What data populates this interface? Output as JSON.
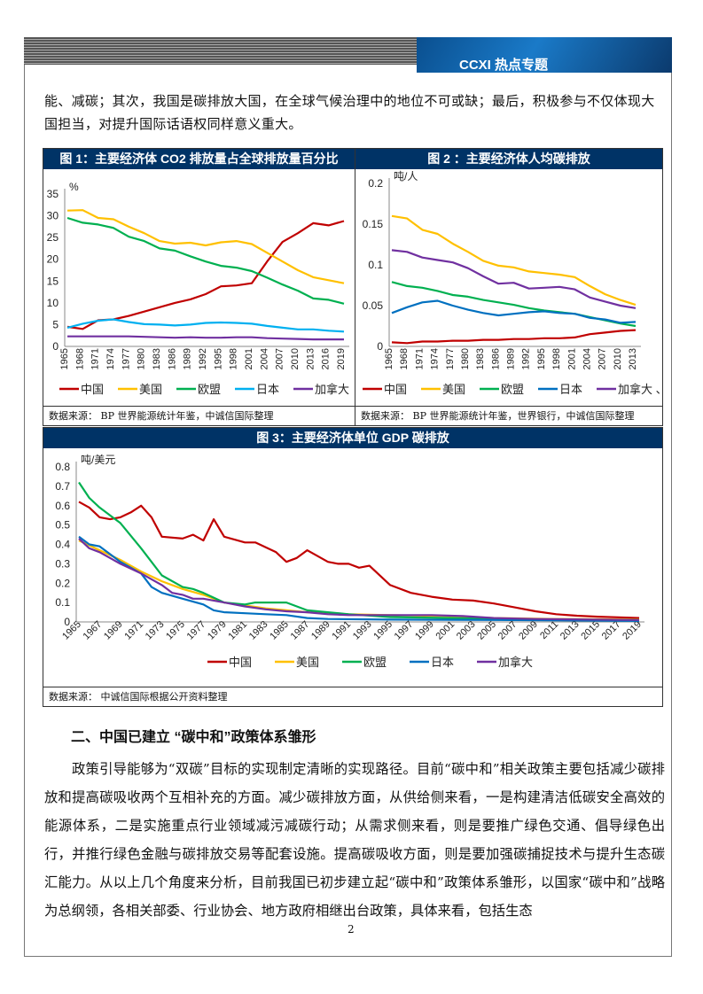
{
  "header": {
    "banner_title": "CCXI 热点专题"
  },
  "intro_text": "能、减碳；其次，我国是碳排放大国，在全球气候治理中的地位不可或缺；最后，积极参与不仅体现大国担当，对提升国际话语权同样意义重大。",
  "section_heading": "二、中国已建立 “碳中和”政策体系雏形",
  "body_text": "政策引导能够为“双碳”目标的实现制定清晰的实现路径。目前“碳中和”相关政策主要包括减少碳排放和提高碳吸收两个互相补充的方面。减少碳排放方面，从供给侧来看，一是构建清洁低碳安全高效的能源体系，二是实施重点行业领域减污减碳行动；从需求侧来看，则是要推广绿色交通、倡导绿色出行，并推行绿色金融与碳排放交易等配套设施。提高碳吸收方面，则是要加强碳捕捉技术与提升生态碳汇能力。从以上几个角度来分析，目前我国已初步建立起“碳中和”政策体系雏形，以国家“碳中和”战略为总纲领，各相关部委、行业协会、地方政府相继出台政策，具体来看，包括生态",
  "page_number": "2",
  "colors": {
    "title_bar": "#003366",
    "china": "#C00000",
    "us": "#FFC000",
    "eu": "#00B050",
    "japan_light": "#00B0F0",
    "japan": "#0070C0",
    "canada": "#7030A0"
  },
  "chart_data": [
    {
      "type": "line",
      "title": "图 1：主要经济体 CO2 排放量占全球排放量百分比",
      "ylabel": "%",
      "ylim": [
        0,
        35
      ],
      "yticks": [
        0,
        5,
        10,
        15,
        20,
        25,
        30,
        35
      ],
      "x": [
        1965,
        1968,
        1971,
        1974,
        1977,
        1980,
        1983,
        1986,
        1989,
        1992,
        1995,
        1998,
        2001,
        2004,
        2007,
        2010,
        2013,
        2016,
        2019
      ],
      "legend": "bottom",
      "source": "数据来源：  BP 世界能源统计年鉴，中诚信国际整理",
      "series": [
        {
          "name": "中国",
          "color": "#C00000",
          "values": [
            4.5,
            4,
            6,
            6.2,
            7,
            8,
            9,
            10,
            10.8,
            12,
            13.8,
            14,
            14.5,
            19.5,
            24,
            26,
            28.3,
            27.8,
            28.8
          ]
        },
        {
          "name": "美国",
          "color": "#FFC000",
          "values": [
            31.2,
            31.3,
            29.5,
            29.2,
            27.5,
            26,
            24.2,
            23.6,
            23.8,
            23.2,
            23.9,
            24.2,
            23.5,
            21.5,
            19.5,
            17.5,
            15.9,
            15.2,
            14.5
          ]
        },
        {
          "name": "欧盟",
          "color": "#00B050",
          "values": [
            29.5,
            28.4,
            28,
            27.2,
            25.2,
            24.2,
            22.5,
            22,
            20.7,
            19.5,
            18.5,
            18.1,
            17.3,
            15.8,
            14.2,
            12.8,
            11,
            10.7,
            9.8
          ]
        },
        {
          "name": "日本",
          "color": "#00B0F0",
          "values": [
            4.3,
            5.2,
            5.9,
            6.2,
            5.6,
            5.1,
            5,
            4.8,
            5,
            5.4,
            5.5,
            5.4,
            5.2,
            4.7,
            4.3,
            3.9,
            3.9,
            3.6,
            3.4
          ]
        },
        {
          "name": "加拿大",
          "color": "#7030A0",
          "values": [
            2.3,
            2.3,
            2.3,
            2.3,
            2.3,
            2.2,
            2.1,
            2,
            2.1,
            2,
            2,
            2.1,
            2.1,
            1.9,
            1.8,
            1.7,
            1.6,
            1.6,
            1.6
          ]
        }
      ]
    },
    {
      "type": "line",
      "title": "图 2 ：主要经济体人均碳排放",
      "ylabel": "吨/人",
      "ylim": [
        0,
        0.2
      ],
      "yticks": [
        0,
        0.05,
        0.1,
        0.15,
        0.2
      ],
      "x": [
        1965,
        1968,
        1971,
        1974,
        1977,
        1980,
        1983,
        1986,
        1989,
        1992,
        1995,
        1998,
        2001,
        2004,
        2007,
        2010,
        2013
      ],
      "legend": "bottom",
      "source": "数据来源：  BP 世界能源统计年鉴，世界银行，中诚信国际整理",
      "series": [
        {
          "name": "中国",
          "color": "#C00000",
          "values": [
            0.005,
            0.004,
            0.006,
            0.006,
            0.007,
            0.007,
            0.008,
            0.008,
            0.009,
            0.009,
            0.01,
            0.01,
            0.011,
            0.015,
            0.017,
            0.019,
            0.02
          ]
        },
        {
          "name": "美国",
          "color": "#FFC000",
          "values": [
            0.16,
            0.157,
            0.143,
            0.138,
            0.126,
            0.116,
            0.105,
            0.099,
            0.097,
            0.092,
            0.09,
            0.088,
            0.085,
            0.074,
            0.064,
            0.057,
            0.051
          ]
        },
        {
          "name": "欧盟",
          "color": "#00B050",
          "values": [
            0.079,
            0.074,
            0.072,
            0.068,
            0.063,
            0.061,
            0.057,
            0.054,
            0.051,
            0.047,
            0.044,
            0.042,
            0.04,
            0.036,
            0.032,
            0.028,
            0.025
          ]
        },
        {
          "name": "日本",
          "color": "#0070C0",
          "values": [
            0.041,
            0.048,
            0.054,
            0.056,
            0.05,
            0.045,
            0.041,
            0.038,
            0.04,
            0.042,
            0.043,
            0.041,
            0.04,
            0.035,
            0.033,
            0.029,
            0.03
          ]
        },
        {
          "name": "加拿大 、",
          "color": "#7030A0",
          "values": [
            0.118,
            0.116,
            0.109,
            0.106,
            0.103,
            0.096,
            0.086,
            0.077,
            0.078,
            0.071,
            0.072,
            0.073,
            0.07,
            0.06,
            0.055,
            0.05,
            0.047
          ]
        }
      ]
    },
    {
      "type": "line",
      "title": "图 3：主要经济体单位 GDP 碳排放",
      "ylabel": "吨/美元",
      "ylim": [
        0,
        0.8
      ],
      "yticks": [
        0,
        0.1,
        0.2,
        0.3,
        0.4,
        0.5,
        0.6,
        0.7,
        0.8
      ],
      "xticks": [
        1965,
        1967,
        1969,
        1971,
        1973,
        1975,
        1977,
        1979,
        1981,
        1983,
        1985,
        1987,
        1989,
        1991,
        1993,
        1995,
        1997,
        1999,
        2001,
        2003,
        2005,
        2007,
        2009,
        2011,
        2013,
        2015,
        2017,
        2019
      ],
      "legend": "bottom",
      "source": "数据来源：  中诚信国际根据公开资料整理",
      "series": [
        {
          "name": "中国",
          "color": "#C00000",
          "points": [
            [
              1965,
              0.62
            ],
            [
              1966,
              0.59
            ],
            [
              1967,
              0.54
            ],
            [
              1968,
              0.53
            ],
            [
              1969,
              0.54
            ],
            [
              1970,
              0.565
            ],
            [
              1971,
              0.6
            ],
            [
              1972,
              0.54
            ],
            [
              1973,
              0.44
            ],
            [
              1975,
              0.43
            ],
            [
              1976,
              0.45
            ],
            [
              1977,
              0.42
            ],
            [
              1978,
              0.53
            ],
            [
              1979,
              0.44
            ],
            [
              1981,
              0.41
            ],
            [
              1982,
              0.41
            ],
            [
              1984,
              0.36
            ],
            [
              1985,
              0.31
            ],
            [
              1986,
              0.33
            ],
            [
              1987,
              0.37
            ],
            [
              1989,
              0.31
            ],
            [
              1990,
              0.3
            ],
            [
              1991,
              0.3
            ],
            [
              1992,
              0.28
            ],
            [
              1993,
              0.29
            ],
            [
              1995,
              0.19
            ],
            [
              1997,
              0.15
            ],
            [
              1999,
              0.13
            ],
            [
              2001,
              0.115
            ],
            [
              2003,
              0.11
            ],
            [
              2005,
              0.095
            ],
            [
              2007,
              0.075
            ],
            [
              2009,
              0.055
            ],
            [
              2011,
              0.04
            ],
            [
              2013,
              0.032
            ],
            [
              2015,
              0.027
            ],
            [
              2017,
              0.024
            ],
            [
              2019,
              0.02
            ]
          ]
        },
        {
          "name": "美国",
          "color": "#FFC000",
          "points": [
            [
              1965,
              0.42
            ],
            [
              1967,
              0.37
            ],
            [
              1969,
              0.32
            ],
            [
              1971,
              0.26
            ],
            [
              1973,
              0.21
            ],
            [
              1975,
              0.17
            ],
            [
              1977,
              0.14
            ],
            [
              1979,
              0.1
            ],
            [
              1981,
              0.085
            ],
            [
              1983,
              0.07
            ],
            [
              1985,
              0.06
            ],
            [
              1987,
              0.05
            ],
            [
              1989,
              0.045
            ],
            [
              1991,
              0.04
            ],
            [
              1995,
              0.035
            ],
            [
              2001,
              0.03
            ],
            [
              2005,
              0.02
            ],
            [
              2011,
              0.015
            ],
            [
              2019,
              0.012
            ]
          ]
        },
        {
          "name": "欧盟",
          "color": "#00B050",
          "points": [
            [
              1965,
              0.72
            ],
            [
              1966,
              0.64
            ],
            [
              1967,
              0.59
            ],
            [
              1969,
              0.51
            ],
            [
              1971,
              0.38
            ],
            [
              1973,
              0.24
            ],
            [
              1975,
              0.18
            ],
            [
              1976,
              0.17
            ],
            [
              1977,
              0.15
            ],
            [
              1979,
              0.1
            ],
            [
              1981,
              0.09
            ],
            [
              1982,
              0.1
            ],
            [
              1985,
              0.1
            ],
            [
              1987,
              0.06
            ],
            [
              1989,
              0.05
            ],
            [
              1991,
              0.04
            ],
            [
              1995,
              0.025
            ],
            [
              2001,
              0.02
            ],
            [
              2005,
              0.015
            ],
            [
              2011,
              0.012
            ],
            [
              2019,
              0.01
            ]
          ]
        },
        {
          "name": "日本",
          "color": "#0070C0",
          "points": [
            [
              1965,
              0.44
            ],
            [
              1966,
              0.4
            ],
            [
              1967,
              0.39
            ],
            [
              1969,
              0.31
            ],
            [
              1971,
              0.25
            ],
            [
              1972,
              0.18
            ],
            [
              1973,
              0.15
            ],
            [
              1975,
              0.12
            ],
            [
              1977,
              0.09
            ],
            [
              1978,
              0.06
            ],
            [
              1979,
              0.05
            ],
            [
              1981,
              0.045
            ],
            [
              1983,
              0.04
            ],
            [
              1985,
              0.035
            ],
            [
              1987,
              0.02
            ],
            [
              1989,
              0.015
            ],
            [
              1995,
              0.012
            ],
            [
              2005,
              0.01
            ],
            [
              2019,
              0.005
            ]
          ]
        },
        {
          "name": "加拿大",
          "color": "#7030A0",
          "points": [
            [
              1965,
              0.43
            ],
            [
              1966,
              0.38
            ],
            [
              1967,
              0.36
            ],
            [
              1969,
              0.3
            ],
            [
              1971,
              0.25
            ],
            [
              1973,
              0.19
            ],
            [
              1974,
              0.15
            ],
            [
              1975,
              0.14
            ],
            [
              1976,
              0.12
            ],
            [
              1977,
              0.12
            ],
            [
              1979,
              0.1
            ],
            [
              1981,
              0.08
            ],
            [
              1983,
              0.065
            ],
            [
              1985,
              0.055
            ],
            [
              1987,
              0.05
            ],
            [
              1989,
              0.04
            ],
            [
              1991,
              0.035
            ],
            [
              1995,
              0.035
            ],
            [
              1999,
              0.035
            ],
            [
              2002,
              0.03
            ],
            [
              2005,
              0.02
            ],
            [
              2009,
              0.015
            ],
            [
              2019,
              0.01
            ]
          ]
        }
      ]
    }
  ]
}
